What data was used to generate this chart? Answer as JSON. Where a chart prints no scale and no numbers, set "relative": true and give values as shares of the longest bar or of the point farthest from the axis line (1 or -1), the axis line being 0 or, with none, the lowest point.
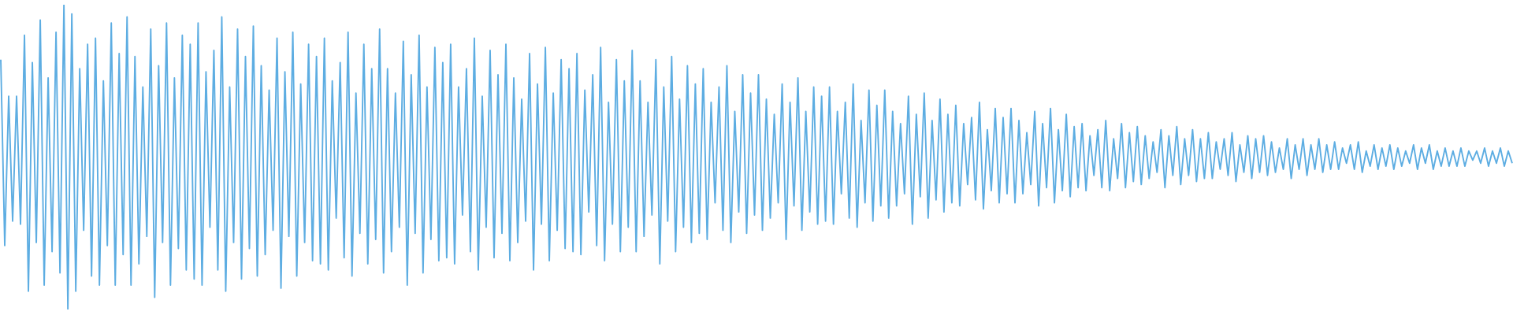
{
  "chart_data": {
    "type": "line",
    "relative": true,
    "color": "#5dade2",
    "categories": [
      null,
      null,
      null,
      null,
      null,
      null,
      null,
      null,
      null,
      null,
      null,
      null,
      null,
      null,
      null,
      null,
      null,
      null,
      null,
      null,
      null,
      null,
      null,
      null,
      null,
      null,
      null,
      null,
      null,
      null,
      null,
      null,
      null,
      null,
      null,
      null,
      null,
      null,
      null,
      null,
      null,
      null,
      null,
      null,
      null,
      null,
      null,
      null,
      null,
      null,
      null,
      null,
      null,
      null,
      null,
      null,
      null,
      null,
      null,
      null,
      null,
      null,
      null,
      null,
      null,
      null,
      null,
      null,
      null,
      null,
      null,
      null,
      null,
      null,
      null,
      null,
      null,
      null,
      null,
      null,
      null,
      null,
      null,
      null,
      null,
      null,
      null,
      null,
      null,
      null,
      null,
      null,
      null,
      null,
      null,
      null,
      null,
      null,
      null,
      null,
      null,
      null,
      null,
      null,
      null,
      null,
      null,
      null,
      null,
      null,
      null,
      null,
      null,
      null,
      null,
      null,
      null,
      null,
      null,
      null,
      null,
      null,
      null,
      null,
      null,
      null,
      null,
      null,
      null,
      null,
      null,
      null,
      null,
      null,
      null,
      null,
      null,
      null,
      null,
      null,
      null,
      null,
      null,
      null,
      null,
      null,
      null,
      null,
      null,
      null,
      null,
      null,
      null,
      null,
      null,
      null,
      null,
      null,
      null,
      null,
      null,
      null,
      null,
      null,
      null,
      null,
      null,
      null,
      null,
      null,
      null,
      null,
      null,
      null,
      null,
      null,
      null,
      null,
      null,
      null,
      null,
      null,
      null,
      null,
      null,
      null,
      null,
      null,
      null,
      null,
      null,
      null,
      null,
      null,
      null,
      null,
      null,
      null,
      null,
      null,
      null,
      null,
      null,
      null,
      null,
      null,
      null,
      null,
      null,
      null,
      null,
      null,
      null,
      null,
      null,
      null,
      null,
      null,
      null,
      null,
      null,
      null,
      null,
      null,
      null,
      null,
      null,
      null,
      null,
      null,
      null,
      null,
      null,
      null,
      null,
      null,
      null,
      null,
      null,
      null,
      null,
      null,
      null,
      null,
      null,
      null,
      null,
      null,
      null,
      null,
      null,
      null,
      null,
      null,
      null,
      null,
      null,
      null,
      null,
      null,
      null,
      null,
      null,
      null,
      null,
      null,
      null,
      null,
      null,
      null,
      null,
      null,
      null,
      null,
      null,
      null,
      null,
      null,
      null,
      null,
      null,
      null,
      null,
      null,
      null,
      null,
      null,
      null,
      null,
      null,
      null,
      null,
      null,
      null,
      null,
      null,
      null,
      null,
      null,
      null,
      null,
      null,
      null,
      null,
      null,
      null,
      null,
      null,
      null,
      null,
      null,
      null,
      null,
      null,
      null,
      null,
      null,
      null,
      null,
      null,
      null,
      null,
      null,
      null,
      null,
      null,
      null,
      null,
      null,
      null,
      null,
      null,
      null,
      null,
      null,
      null,
      null,
      null,
      null,
      null,
      null,
      null,
      null,
      null,
      null,
      null,
      null,
      null,
      null,
      null,
      null,
      null,
      null,
      null,
      null,
      null,
      null,
      null,
      null,
      null,
      null,
      null,
      null,
      null,
      null,
      null,
      null,
      null,
      null,
      null,
      null,
      null,
      null,
      null,
      null,
      null,
      null,
      null,
      null,
      null,
      null,
      null,
      null,
      null
    ],
    "values": [
      0.82,
      0.21,
      0.7,
      0.29,
      0.7,
      0.28,
      0.9,
      0.06,
      0.81,
      0.22,
      0.95,
      0.08,
      0.76,
      0.19,
      0.91,
      0.12,
      1.0,
      0.0,
      0.97,
      0.06,
      0.79,
      0.26,
      0.87,
      0.11,
      0.89,
      0.08,
      0.75,
      0.21,
      0.94,
      0.08,
      0.84,
      0.18,
      0.96,
      0.08,
      0.83,
      0.15,
      0.73,
      0.24,
      0.92,
      0.04,
      0.8,
      0.22,
      0.94,
      0.08,
      0.76,
      0.2,
      0.9,
      0.13,
      0.87,
      0.1,
      0.94,
      0.08,
      0.78,
      0.27,
      0.85,
      0.13,
      0.96,
      0.06,
      0.73,
      0.22,
      0.92,
      0.1,
      0.83,
      0.2,
      0.93,
      0.11,
      0.8,
      0.18,
      0.72,
      0.26,
      0.89,
      0.07,
      0.78,
      0.24,
      0.91,
      0.11,
      0.74,
      0.22,
      0.87,
      0.16,
      0.83,
      0.15,
      0.89,
      0.13,
      0.75,
      0.3,
      0.81,
      0.17,
      0.91,
      0.11,
      0.71,
      0.25,
      0.87,
      0.15,
      0.79,
      0.23,
      0.92,
      0.12,
      0.79,
      0.19,
      0.71,
      0.27,
      0.88,
      0.08,
      0.77,
      0.25,
      0.9,
      0.12,
      0.73,
      0.23,
      0.86,
      0.16,
      0.81,
      0.17,
      0.87,
      0.15,
      0.73,
      0.31,
      0.79,
      0.19,
      0.89,
      0.13,
      0.7,
      0.27,
      0.85,
      0.17,
      0.77,
      0.25,
      0.87,
      0.16,
      0.76,
      0.22,
      0.69,
      0.29,
      0.84,
      0.13,
      0.74,
      0.28,
      0.86,
      0.16,
      0.71,
      0.26,
      0.82,
      0.2,
      0.79,
      0.19,
      0.84,
      0.18,
      0.72,
      0.32,
      0.77,
      0.21,
      0.86,
      0.16,
      0.68,
      0.28,
      0.82,
      0.19,
      0.75,
      0.27,
      0.85,
      0.19,
      0.75,
      0.24,
      0.68,
      0.31,
      0.82,
      0.15,
      0.73,
      0.29,
      0.83,
      0.19,
      0.69,
      0.27,
      0.8,
      0.22,
      0.74,
      0.25,
      0.79,
      0.23,
      0.68,
      0.35,
      0.73,
      0.26,
      0.8,
      0.22,
      0.65,
      0.32,
      0.77,
      0.25,
      0.71,
      0.31,
      0.77,
      0.26,
      0.69,
      0.3,
      0.64,
      0.35,
      0.74,
      0.23,
      0.68,
      0.34,
      0.76,
      0.26,
      0.65,
      0.32,
      0.73,
      0.28,
      0.7,
      0.29,
      0.73,
      0.28,
      0.65,
      0.38,
      0.68,
      0.3,
      0.74,
      0.27,
      0.62,
      0.35,
      0.72,
      0.29,
      0.67,
      0.34,
      0.72,
      0.3,
      0.65,
      0.34,
      0.61,
      0.38,
      0.7,
      0.28,
      0.64,
      0.37,
      0.71,
      0.3,
      0.62,
      0.36,
      0.69,
      0.32,
      0.64,
      0.35,
      0.67,
      0.34,
      0.61,
      0.41,
      0.63,
      0.36,
      0.68,
      0.33,
      0.59,
      0.39,
      0.66,
      0.35,
      0.63,
      0.38,
      0.66,
      0.35,
      0.62,
      0.38,
      0.58,
      0.41,
      0.65,
      0.34,
      0.61,
      0.4,
      0.66,
      0.35,
      0.59,
      0.39,
      0.64,
      0.37,
      0.6,
      0.4,
      0.61,
      0.39,
      0.57,
      0.44,
      0.59,
      0.4,
      0.62,
      0.39,
      0.56,
      0.43,
      0.61,
      0.4,
      0.58,
      0.42,
      0.6,
      0.41,
      0.57,
      0.43,
      0.55,
      0.45,
      0.59,
      0.4,
      0.57,
      0.44,
      0.6,
      0.41,
      0.56,
      0.44,
      0.59,
      0.42,
      0.56,
      0.43,
      0.58,
      0.43,
      0.55,
      0.46,
      0.56,
      0.44,
      0.58,
      0.42,
      0.54,
      0.45,
      0.57,
      0.43,
      0.56,
      0.45,
      0.57,
      0.44,
      0.55,
      0.45,
      0.53,
      0.46,
      0.56,
      0.43,
      0.54,
      0.46,
      0.56,
      0.44,
      0.54,
      0.46,
      0.56,
      0.45,
      0.54,
      0.46,
      0.55,
      0.46,
      0.53,
      0.48,
      0.54,
      0.46,
      0.55,
      0.45,
      0.52,
      0.47,
      0.54,
      0.46,
      0.53,
      0.47,
      0.54,
      0.46,
      0.53,
      0.47,
      0.52,
      0.48,
      0.54,
      0.46,
      0.53,
      0.48,
      0.54,
      0.46,
      0.52,
      0.47,
      0.53,
      0.47,
      0.52,
      0.47,
      0.53,
      0.47,
      0.52,
      0.49,
      0.52,
      0.48,
      0.53,
      0.47,
      0.52,
      0.48,
      0.53,
      0.47,
      0.52,
      0.48
    ]
  }
}
